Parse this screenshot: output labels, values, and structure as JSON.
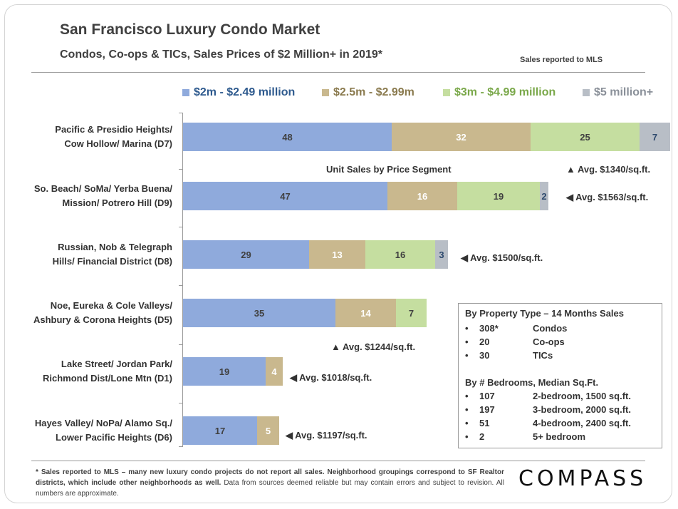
{
  "header": {
    "title": "San Francisco Luxury Condo Market",
    "subtitle": "Condos, Co-ops & TICs, Sales Prices of $2 Million+ in 2019*",
    "note": "Sales reported to MLS"
  },
  "chart_data": {
    "type": "bar",
    "orientation": "horizontal",
    "stacked": true,
    "title": "Unit Sales by Price Segment",
    "categories": [
      [
        "Pacific & Presidio Heights/",
        "Cow Hollow/ Marina (D7)"
      ],
      [
        "So. Beach/ SoMa/ Yerba Buena/",
        "Mission/ Potrero Hill (D9)"
      ],
      [
        "Russian, Nob & Telegraph",
        "Hills/ Financial District (D8)"
      ],
      [
        "Noe, Eureka & Cole Valleys/",
        "Ashbury & Corona Heights (D5)"
      ],
      [
        "Lake Street/ Jordan Park/",
        "Richmond Dist/Lone Mtn (D1)"
      ],
      [
        "Hayes Valley/ NoPa/ Alamo Sq./",
        "Lower Pacific Heights (D6)"
      ]
    ],
    "series": [
      {
        "name": "$2m - $2.49 million",
        "color": "#8faadc",
        "text_color": "#2e5a8e",
        "values": [
          48,
          47,
          29,
          35,
          19,
          17
        ]
      },
      {
        "name": "$2.5m - $2.99m",
        "color": "#c9b88e",
        "text_color": "#8a7a4e",
        "values": [
          32,
          16,
          13,
          14,
          4,
          5
        ]
      },
      {
        "name": "$3m - $4.99 million",
        "color": "#c5dea0",
        "text_color": "#7aa84a",
        "values": [
          25,
          19,
          16,
          7,
          0,
          0
        ]
      },
      {
        "name": "$5 million+",
        "color": "#b8bec6",
        "text_color": "#8a9099",
        "values": [
          7,
          2,
          3,
          0,
          0,
          0
        ]
      }
    ],
    "annotations": [
      {
        "text": "▲ Avg. $1340/sq.ft."
      },
      {
        "text": "◀ Avg. $1563/sq.ft."
      },
      {
        "text": "◀ Avg. $1500/sq.ft."
      },
      {
        "text": "▲ Avg. $1244/sq.ft."
      },
      {
        "text": "◀ Avg. $1018/sq.ft."
      },
      {
        "text": "◀ Avg. $1197/sq.ft."
      }
    ],
    "xlim": [
      0,
      112
    ]
  },
  "info_box": {
    "heading1": "By Property Type – 14 Months Sales",
    "property_types": [
      {
        "count": "308*",
        "label": "Condos"
      },
      {
        "count": "20",
        "label": "Co-ops"
      },
      {
        "count": "30",
        "label": "TICs"
      }
    ],
    "heading2": "By # Bedrooms, Median Sq.Ft.",
    "bedrooms": [
      {
        "count": "107",
        "label": "2-bedroom, 1500 sq.ft."
      },
      {
        "count": "197",
        "label": "3-bedroom, 2000 sq.ft."
      },
      {
        "count": "51",
        "label": "4-bedroom, 2400 sq.ft."
      },
      {
        "count": "2",
        "label": "5+ bedroom"
      }
    ],
    "bullet": "•"
  },
  "footer": {
    "bold_text": "* Sales reported to MLS – many new luxury condo projects do not report all sales. Neighborhood groupings correspond to SF Realtor districts, which include other neighborhoods as well.",
    "plain_text": " Data from sources deemed reliable but may contain errors and subject to revision. All numbers are approximate.",
    "logo": "COMPASS"
  }
}
